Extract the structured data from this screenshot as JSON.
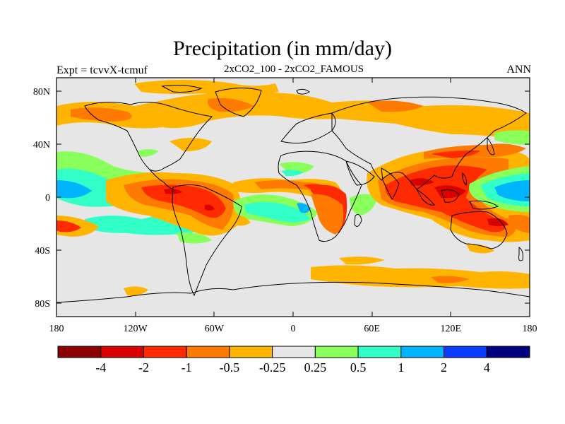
{
  "title": "Precipitation (in mm/day)",
  "subtitle": "2xCO2_100 - 2xCO2_FAMOUS",
  "experiment": "Expt = tcvvX-tcmuf",
  "season": "ANN",
  "map": {
    "projection": "cylindrical-equidistant",
    "lon_range": [
      -180,
      180
    ],
    "lat_range": [
      -90,
      90
    ],
    "x_ticks": [
      "180",
      "120W",
      "60W",
      "0",
      "60E",
      "120E",
      "180"
    ],
    "y_ticks": [
      "80N",
      "40N",
      "0",
      "40S",
      "80S"
    ],
    "background_color": "#e6e6e6",
    "coastline_color": "#000000"
  },
  "colorbar": {
    "levels": [
      "-4",
      "-2",
      "-1",
      "-0.5",
      "-0.25",
      "0.25",
      "0.5",
      "1",
      "2",
      "4"
    ],
    "colors": [
      "#8b0000",
      "#d90000",
      "#ff2a00",
      "#ff7a00",
      "#ffb400",
      "#e6e6e6",
      "#88ff5a",
      "#32ffc8",
      "#00b4ff",
      "#0a3cff",
      "#00007f"
    ]
  }
}
